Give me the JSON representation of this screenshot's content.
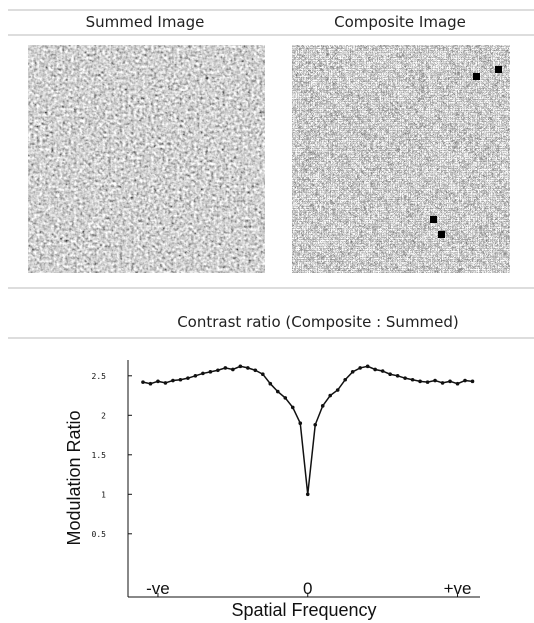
{
  "header": {
    "left": "Summed Image",
    "right": "Composite Image"
  },
  "caption": "Contrast ratio (Composite : Summed)",
  "chart_data": {
    "type": "line",
    "x_label": "Spatial Frequency",
    "y_label": "Modulation Ratio",
    "x": [
      -1.1,
      -1.05,
      -1.0,
      -0.95,
      -0.9,
      -0.85,
      -0.8,
      -0.75,
      -0.7,
      -0.65,
      -0.6,
      -0.55,
      -0.5,
      -0.45,
      -0.4,
      -0.35,
      -0.3,
      -0.25,
      -0.2,
      -0.15,
      -0.1,
      -0.05,
      0,
      0.05,
      0.1,
      0.15,
      0.2,
      0.25,
      0.3,
      0.35,
      0.4,
      0.45,
      0.5,
      0.55,
      0.6,
      0.65,
      0.7,
      0.75,
      0.8,
      0.85,
      0.9,
      0.95,
      1.0,
      1.05,
      1.1
    ],
    "values": [
      2.42,
      2.4,
      2.43,
      2.41,
      2.44,
      2.45,
      2.47,
      2.5,
      2.53,
      2.55,
      2.57,
      2.6,
      2.58,
      2.62,
      2.6,
      2.57,
      2.52,
      2.4,
      2.3,
      2.22,
      2.1,
      1.9,
      1.0,
      1.88,
      2.12,
      2.25,
      2.32,
      2.45,
      2.55,
      2.6,
      2.62,
      2.58,
      2.56,
      2.52,
      2.5,
      2.47,
      2.45,
      2.43,
      2.42,
      2.44,
      2.41,
      2.43,
      2.4,
      2.44,
      2.43
    ],
    "color": "#111111",
    "xlim": [
      -1.2,
      1.15
    ],
    "ylim": [
      -0.3,
      2.7
    ],
    "xticks": [
      {
        "value": -1,
        "label": "-ve"
      },
      0,
      {
        "value": 1,
        "label": "+ve"
      }
    ],
    "yticks": [
      0.5,
      1,
      1.5,
      2,
      2.5
    ]
  }
}
